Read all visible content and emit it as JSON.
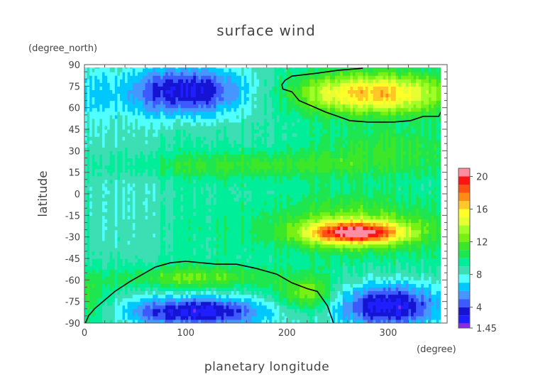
{
  "chart_data": {
    "type": "heatmap",
    "title": "surface wind",
    "xlabel": "planetary longitude",
    "ylabel": "latitude",
    "x_unit": "(degree)",
    "y_unit": "(degree_north)",
    "xlim": [
      0,
      350
    ],
    "ylim": [
      -90,
      90
    ],
    "x_ticks": [
      0,
      100,
      200,
      300
    ],
    "y_ticks": [
      90,
      75,
      60,
      45,
      30,
      15,
      0,
      -15,
      -30,
      -45,
      -60,
      -75,
      -90
    ],
    "colorbar": {
      "levels": [
        1.45,
        2,
        3,
        4,
        5,
        6,
        7,
        8,
        9,
        10,
        11,
        12,
        13,
        14,
        15,
        16,
        17,
        18,
        19,
        20,
        21
      ],
      "tick_labels": [
        "1.45",
        "4",
        "8",
        "12",
        "16",
        "20"
      ],
      "tick_values": [
        1.45,
        4,
        8,
        12,
        16,
        20
      ],
      "colors": [
        "#8a2be2",
        "#1e1eff",
        "#1414d2",
        "#3c5aff",
        "#4696ff",
        "#00c8ff",
        "#50ffff",
        "#3cdfb4",
        "#00ee9a",
        "#1ee650",
        "#3ce628",
        "#78f014",
        "#a0ff28",
        "#e6ff32",
        "#ffff28",
        "#ffc828",
        "#ff8c14",
        "#ff5014",
        "#ff1414",
        "#ff8ca0"
      ]
    },
    "contour_line_level": 15,
    "features": [
      {
        "type": "max",
        "lon": 270,
        "lat": -27,
        "value": 19
      },
      {
        "type": "max",
        "lon": 280,
        "lat": 68,
        "value": 17
      },
      {
        "type": "min",
        "lon": 90,
        "lat": 68,
        "value": 3
      },
      {
        "type": "min",
        "lon": 100,
        "lat": -80,
        "value": 3
      },
      {
        "type": "min",
        "lon": 300,
        "lat": -78,
        "value": 3
      }
    ]
  }
}
